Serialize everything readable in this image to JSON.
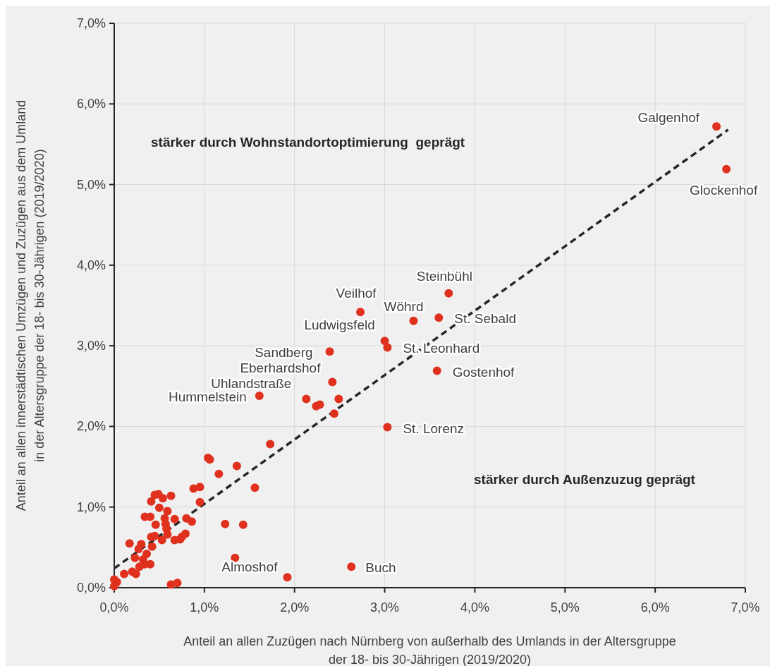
{
  "chart_data": {
    "type": "scatter",
    "xlabel": "Anteil an allen Zuzügen nach Nürnberg von außerhalb des Umlands in der Altersgruppe der 18- bis 30-Jährigen (2019/2020)",
    "ylabel": "Anteil an allen innerstädtischen Umzügen und Zuzügen aus dem Umland in der Altersgruppe der 18- bis 30-Jährigen (2019/2020)",
    "xlim": [
      0,
      7
    ],
    "ylim": [
      0,
      7
    ],
    "xticks": [
      {
        "value": 0,
        "label": "0,0%"
      },
      {
        "value": 1,
        "label": "1,0%"
      },
      {
        "value": 2,
        "label": "2,0%"
      },
      {
        "value": 3,
        "label": "3,0%"
      },
      {
        "value": 4,
        "label": "4,0%"
      },
      {
        "value": 5,
        "label": "5,0%"
      },
      {
        "value": 6,
        "label": "6,0%"
      },
      {
        "value": 7,
        "label": "7,0%"
      }
    ],
    "yticks": [
      {
        "value": 0,
        "label": "0,0%"
      },
      {
        "value": 1,
        "label": "1,0%"
      },
      {
        "value": 2,
        "label": "2,0%"
      },
      {
        "value": 3,
        "label": "3,0%"
      },
      {
        "value": 4,
        "label": "4,0%"
      },
      {
        "value": 5,
        "label": "5,0%"
      },
      {
        "value": 6,
        "label": "6,0%"
      },
      {
        "value": 7,
        "label": "7,0%"
      }
    ],
    "grid": true,
    "marker": "circle",
    "series": [
      {
        "color": "#e0301e",
        "x": [
          6.68,
          6.79,
          3.71,
          2.73,
          3.32,
          3.6,
          3.0,
          3.03,
          2.39,
          3.58,
          2.42,
          2.13,
          1.61,
          3.03,
          1.92,
          2.63,
          2.24,
          2.28,
          2.49,
          2.44,
          1.73,
          1.36,
          1.16,
          1.56,
          1.23,
          1.43,
          1.34,
          1.04,
          1.06,
          0.88,
          0.95,
          0.95,
          0.63,
          0.49,
          0.45,
          0.54,
          0.41,
          0.5,
          0.59,
          0.34,
          0.4,
          0.56,
          0.67,
          0.8,
          0.86,
          0.46,
          0.57,
          0.58,
          0.79,
          0.75,
          0.59,
          0.53,
          0.67,
          0.73,
          0.41,
          0.45,
          0.42,
          0.17,
          0.3,
          0.27,
          0.36,
          0.23,
          0.32,
          0.4,
          0.34,
          0.28,
          0.2,
          0.11,
          0.24,
          0.0,
          0.03,
          0.0,
          0.63,
          0.7
        ],
        "values": [
          5.72,
          5.19,
          3.65,
          3.42,
          3.31,
          3.35,
          3.06,
          2.98,
          2.93,
          2.69,
          2.55,
          2.34,
          2.38,
          1.99,
          0.13,
          0.26,
          2.25,
          2.27,
          2.34,
          2.16,
          1.78,
          1.51,
          1.41,
          1.24,
          0.79,
          0.78,
          0.37,
          1.61,
          1.59,
          1.23,
          1.25,
          1.06,
          1.14,
          1.16,
          1.15,
          1.11,
          1.07,
          0.99,
          0.95,
          0.88,
          0.88,
          0.86,
          0.85,
          0.86,
          0.82,
          0.78,
          0.79,
          0.73,
          0.67,
          0.63,
          0.66,
          0.59,
          0.59,
          0.6,
          0.63,
          0.64,
          0.51,
          0.55,
          0.54,
          0.48,
          0.42,
          0.37,
          0.35,
          0.29,
          0.29,
          0.26,
          0.2,
          0.17,
          0.17,
          0.1,
          0.07,
          0.02,
          0.04,
          0.06
        ]
      },
      {
        "type": "line",
        "color": "#262626",
        "line_style": "dashed",
        "marker": "none",
        "x": [
          0,
          6.81
        ],
        "values": [
          0.24,
          5.68
        ]
      }
    ],
    "annotations": [
      {
        "text": "Galgenhof",
        "x": 6.68,
        "y": 5.72
      },
      {
        "text": "Glockenhof",
        "x": 6.79,
        "y": 5.19
      },
      {
        "text": "Steinbühl",
        "x": 3.71,
        "y": 3.65
      },
      {
        "text": "Veilhof",
        "x": 2.73,
        "y": 3.42
      },
      {
        "text": "Wöhrd",
        "x": 3.32,
        "y": 3.31
      },
      {
        "text": "St. Sebald",
        "x": 3.6,
        "y": 3.35
      },
      {
        "text": "Ludwigsfeld",
        "x": 3.0,
        "y": 3.06
      },
      {
        "text": "St. Leonhard",
        "x": 3.03,
        "y": 2.98
      },
      {
        "text": "Sandberg",
        "x": 2.39,
        "y": 2.93
      },
      {
        "text": "Gostenhof",
        "x": 3.58,
        "y": 2.69
      },
      {
        "text": "Eberhardshof",
        "x": 2.42,
        "y": 2.55
      },
      {
        "text": "Uhlandstraße",
        "x": 2.13,
        "y": 2.34
      },
      {
        "text": "Hummelstein",
        "x": 1.61,
        "y": 2.38
      },
      {
        "text": "St. Lorenz",
        "x": 3.03,
        "y": 1.99
      },
      {
        "text": "Almoshof",
        "x": 1.92,
        "y": 0.13
      },
      {
        "text": "Buch",
        "x": 2.63,
        "y": 0.26
      },
      "stärker durch Wohnstandortoptimierung  geprägt",
      "stärker durch Außenzuzug geprägt"
    ]
  }
}
